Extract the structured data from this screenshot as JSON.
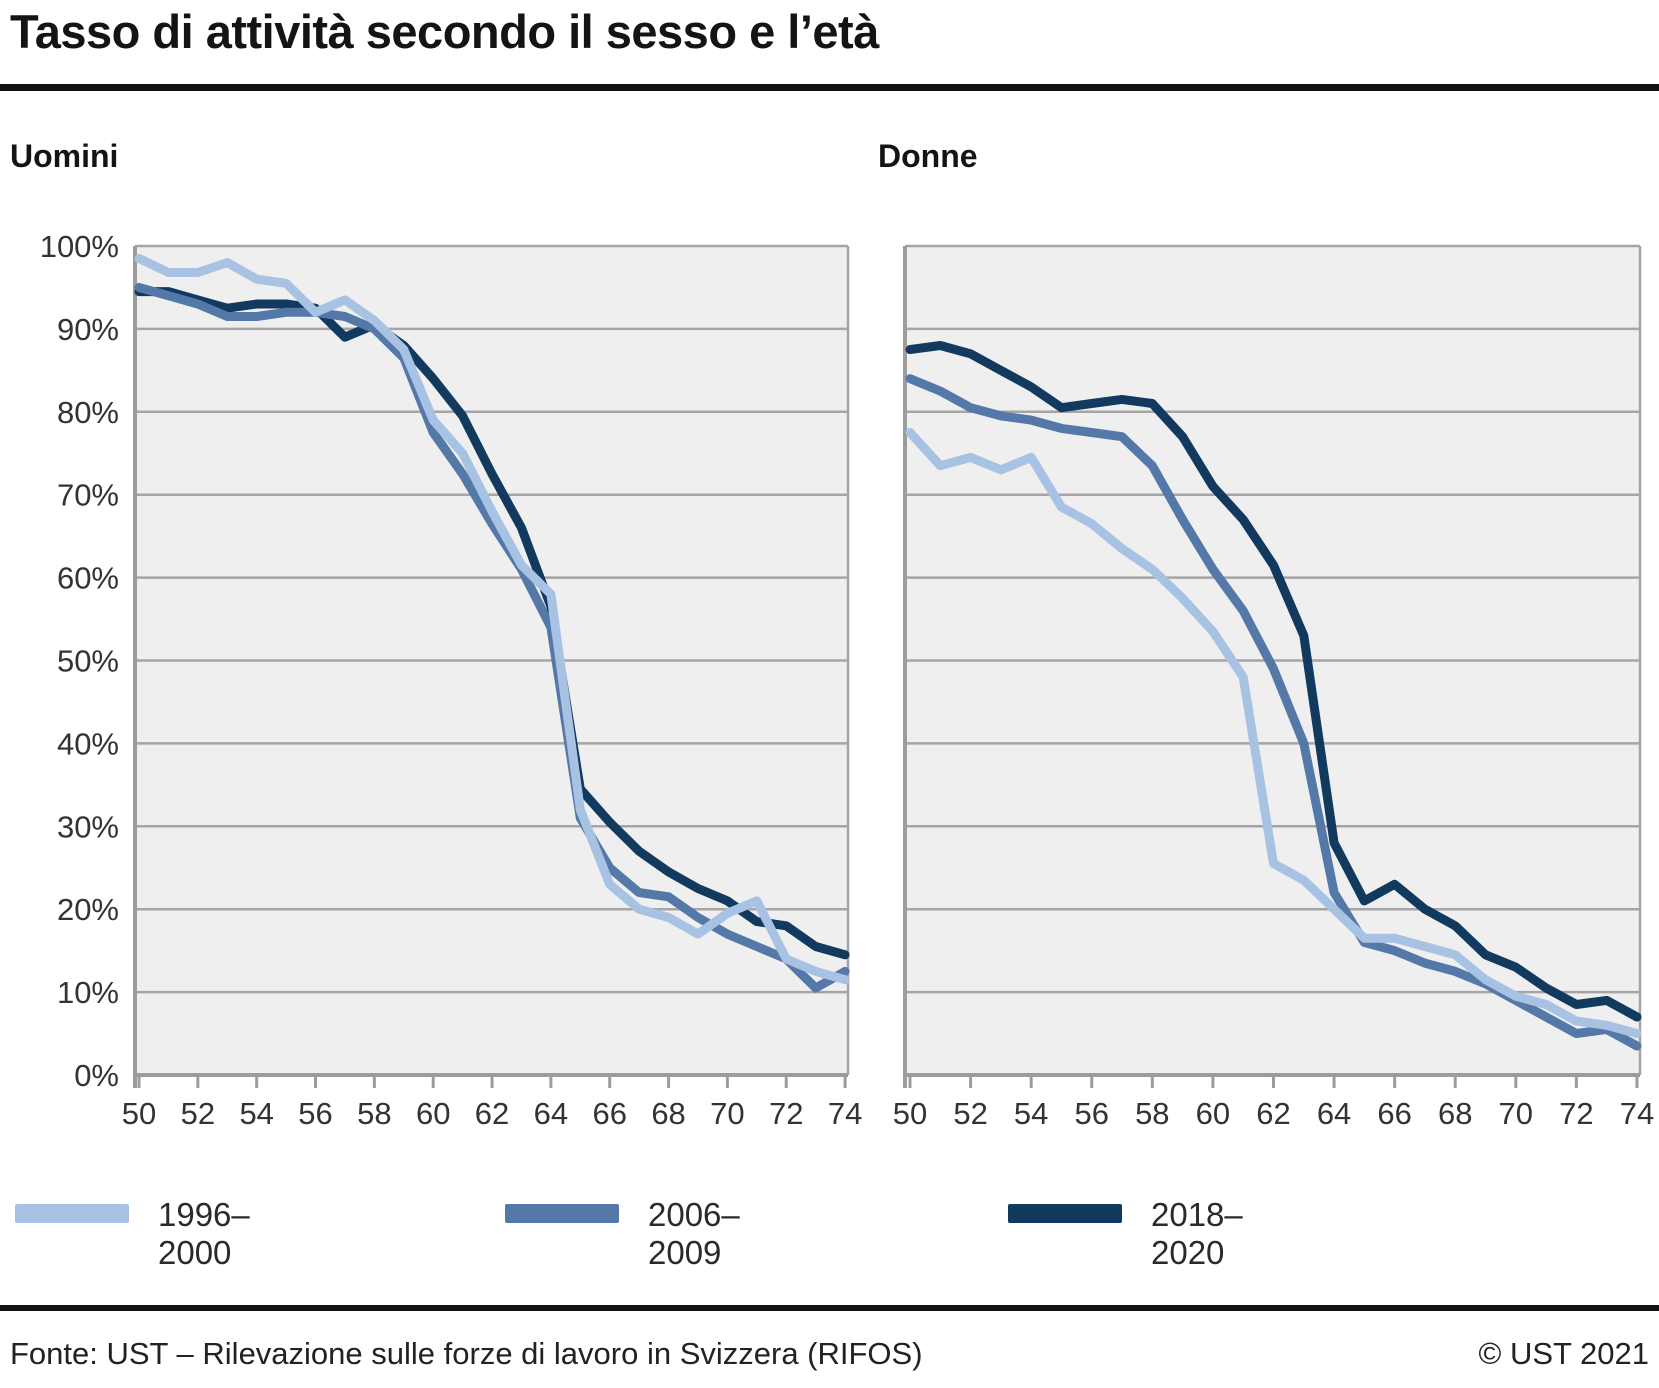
{
  "header": {
    "title": "Tasso di attività secondo il sesso e l’età"
  },
  "panels": [
    {
      "label": "Uomini"
    },
    {
      "label": "Donne"
    }
  ],
  "legend": {
    "items": [
      {
        "label": "1996–2000",
        "color": "#a8c2e4"
      },
      {
        "label": "2006–2009",
        "color": "#5478a8"
      },
      {
        "label": "2018–2020",
        "color": "#12395e"
      }
    ]
  },
  "footer": {
    "source": "Fonte: UST – Rilevazione sulle forze di lavoro in Svizzera (RIFOS)",
    "copyright": "© UST 2021"
  },
  "colors": {
    "plot_bg": "#efefef",
    "gridline": "#a5a5a5",
    "axis": "#9c9c9c",
    "tick_label": "#333333"
  },
  "chart_data": [
    {
      "type": "line",
      "title": "Uomini",
      "x": [
        50,
        51,
        52,
        53,
        54,
        55,
        56,
        57,
        58,
        59,
        60,
        61,
        62,
        63,
        64,
        65,
        66,
        67,
        68,
        69,
        70,
        71,
        72,
        73,
        74
      ],
      "xtick_labels": [
        "50",
        "52",
        "54",
        "56",
        "58",
        "60",
        "62",
        "64",
        "66",
        "68",
        "70",
        "72",
        "74"
      ],
      "ytick_labels": [
        "0%",
        "10%",
        "20%",
        "30%",
        "40%",
        "50%",
        "60%",
        "70%",
        "80%",
        "90%",
        "100%"
      ],
      "ylim": [
        0,
        100
      ],
      "grid": true,
      "series": [
        {
          "name": "1996–2000",
          "color": "#a8c2e4",
          "values": [
            98.5,
            96.8,
            96.8,
            98,
            96,
            95.5,
            92,
            93.5,
            91,
            87.5,
            79,
            75,
            68,
            61.5,
            58,
            32,
            23,
            20,
            19,
            17,
            19.5,
            21,
            14,
            12.5,
            11.5
          ]
        },
        {
          "name": "2006–2009",
          "color": "#5478a8",
          "values": [
            95,
            94,
            93,
            91.5,
            91.5,
            92,
            92,
            91.5,
            90,
            86.5,
            77.5,
            72.5,
            66.5,
            61,
            54,
            31,
            25,
            22,
            21.5,
            19,
            17,
            15.5,
            14,
            10.5,
            12.5
          ]
        },
        {
          "name": "2018–2020",
          "color": "#12395e",
          "values": [
            94.5,
            94.5,
            93.5,
            92.5,
            93,
            93,
            92.5,
            89,
            90.5,
            88,
            84,
            79.5,
            72.5,
            66,
            56.5,
            34.5,
            30.5,
            27,
            24.5,
            22.5,
            21,
            18.5,
            18,
            15.5,
            14.5
          ]
        }
      ]
    },
    {
      "type": "line",
      "title": "Donne",
      "x": [
        50,
        51,
        52,
        53,
        54,
        55,
        56,
        57,
        58,
        59,
        60,
        61,
        62,
        63,
        64,
        65,
        66,
        67,
        68,
        69,
        70,
        71,
        72,
        73,
        74
      ],
      "xtick_labels": [
        "50",
        "52",
        "54",
        "56",
        "58",
        "60",
        "62",
        "64",
        "66",
        "68",
        "70",
        "72",
        "74"
      ],
      "ytick_labels": [
        "0%",
        "10%",
        "20%",
        "30%",
        "40%",
        "50%",
        "60%",
        "70%",
        "80%",
        "90%",
        "100%"
      ],
      "ylim": [
        0,
        100
      ],
      "grid": true,
      "series": [
        {
          "name": "1996–2000",
          "color": "#a8c2e4",
          "values": [
            77.5,
            73.5,
            74.5,
            73,
            74.5,
            68.5,
            66.5,
            63.5,
            61,
            57.5,
            53.5,
            48,
            25.5,
            23.5,
            20,
            16.5,
            16.5,
            15.5,
            14.5,
            11.5,
            9.5,
            8.5,
            6.5,
            6,
            5
          ]
        },
        {
          "name": "2006–2009",
          "color": "#5478a8",
          "values": [
            84,
            82.5,
            80.5,
            79.5,
            79,
            78,
            77.5,
            77,
            73.5,
            67,
            61,
            56,
            49,
            40,
            22,
            16,
            15,
            13.5,
            12.5,
            11,
            9,
            7,
            5,
            5.5,
            3.5
          ]
        },
        {
          "name": "2018–2020",
          "color": "#12395e",
          "values": [
            87.5,
            88,
            87,
            85,
            83,
            80.5,
            81,
            81.5,
            81,
            77,
            71,
            67,
            61.5,
            53,
            28,
            21,
            23,
            20,
            18,
            14.5,
            13,
            10.5,
            8.5,
            9,
            7
          ]
        }
      ]
    }
  ]
}
